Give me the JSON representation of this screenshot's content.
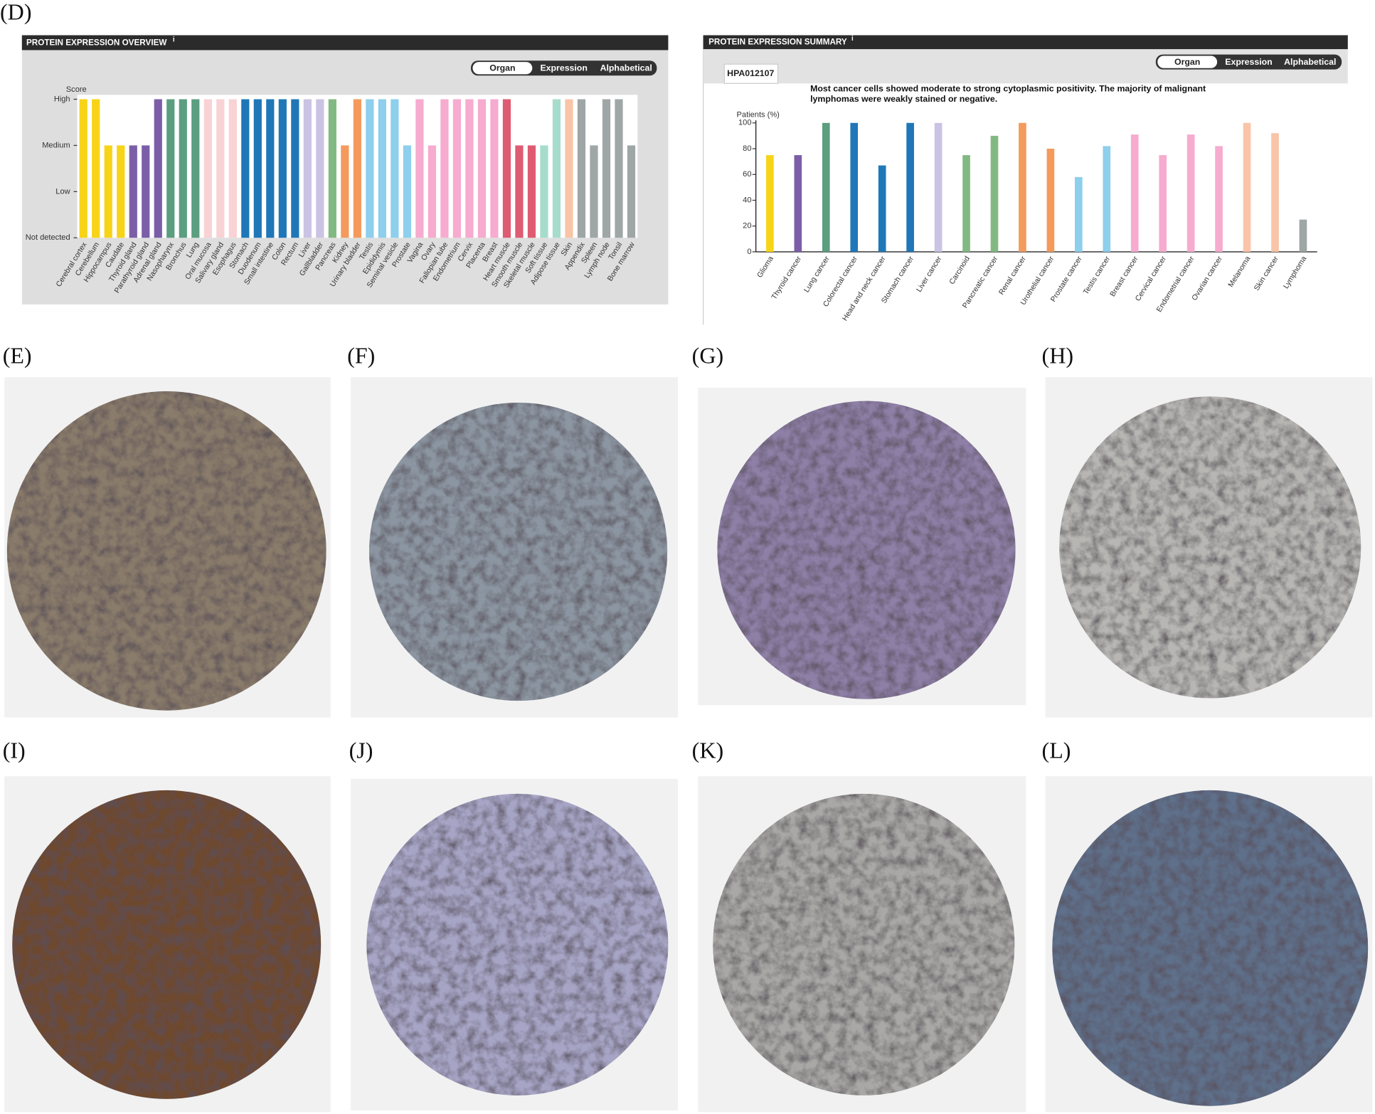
{
  "figure_label": "(D)",
  "chart_data": [
    {
      "type": "bar",
      "title": "PROTEIN EXPRESSION OVERVIEW",
      "info": "i",
      "buttons": [
        "Organ",
        "Expression",
        "Alphabetical"
      ],
      "ylabel": "Score",
      "categories": [
        "Cerebral cortex",
        "Cerebellum",
        "Hippocampus",
        "Caudate",
        "Thyroid gland",
        "Parathyroid gland",
        "Adrenal gland",
        "Nasopharynx",
        "Bronchus",
        "Lung",
        "Oral mucosa",
        "Salivary gland",
        "Esophagus",
        "Stomach",
        "Duodenum",
        "Small intestine",
        "Colon",
        "Rectum",
        "Liver",
        "Gallbladder",
        "Pancreas",
        "Kidney",
        "Urinary bladder",
        "Testis",
        "Epididymis",
        "Seminal vesicle",
        "Prostate",
        "Vagina",
        "Ovary",
        "Fallopian tube",
        "Endometrium",
        "Cervix",
        "Placenta",
        "Breast",
        "Heart muscle",
        "Smooth muscle",
        "Skeletal muscle",
        "Soft tissue",
        "Adipose tissue",
        "Skin",
        "Appendix",
        "Spleen",
        "Lymph node",
        "Tonsil",
        "Bone marrow"
      ],
      "values": [
        3,
        3,
        2,
        2,
        2,
        2,
        3,
        3,
        3,
        3,
        3,
        3,
        3,
        3,
        3,
        3,
        3,
        3,
        3,
        3,
        3,
        2,
        3,
        3,
        3,
        3,
        2,
        3,
        2,
        3,
        3,
        3,
        3,
        3,
        3,
        2,
        2,
        2,
        3,
        3,
        3,
        2,
        3,
        3,
        2
      ],
      "colors": [
        "#f7d417",
        "#f7d417",
        "#f7d417",
        "#f7d417",
        "#7b5ea7",
        "#7b5ea7",
        "#7b5ea7",
        "#5b9e80",
        "#5b9e80",
        "#5b9e80",
        "#f8d2d4",
        "#f8d2d4",
        "#f8d2d4",
        "#1f77b8",
        "#1f77b8",
        "#1f77b8",
        "#1f77b8",
        "#1f77b8",
        "#cbc3e3",
        "#cbc3e3",
        "#82b982",
        "#f49a5c",
        "#f49a5c",
        "#8dcfec",
        "#8dcfec",
        "#8dcfec",
        "#8dcfec",
        "#f6abcf",
        "#f6abcf",
        "#f6abcf",
        "#f6abcf",
        "#f6abcf",
        "#f6abcf",
        "#f6abcf",
        "#de5b71",
        "#de5b71",
        "#de5b71",
        "#a6dccb",
        "#a6dccb",
        "#f9c4a7",
        "#9ea6a6",
        "#9ea6a6",
        "#9ea6a6",
        "#9ea6a6",
        "#9ea6a6"
      ],
      "ylim": [
        0,
        3
      ],
      "yticks": [
        {
          "value": 0,
          "label": "Not detected"
        },
        {
          "value": 1,
          "label": "Low"
        },
        {
          "value": 2,
          "label": "Medium"
        },
        {
          "value": 3,
          "label": "High"
        }
      ]
    },
    {
      "type": "bar",
      "title": "PROTEIN EXPRESSION SUMMARY",
      "info": "i",
      "buttons": [
        "Organ",
        "Expression",
        "Alphabetical"
      ],
      "antibody": "HPA012107",
      "description": "Most cancer cells showed moderate to strong cytoplasmic positivity. The majority of malignant lymphomas were weakly stained or negative.",
      "ylabel": "Patients (%)",
      "categories": [
        "Glioma",
        "Thyroid cancer",
        "Lung cancer",
        "Colorectal cancer",
        "Head and neck cancer",
        "Stomach cancer",
        "Liver cancer",
        "Carcinoid",
        "Pancreatic cancer",
        "Renal cancer",
        "Urothelial cancer",
        "Prostate cancer",
        "Testis cancer",
        "Breast cancer",
        "Cervical cancer",
        "Endometrial cancer",
        "Ovarian cancer",
        "Melanoma",
        "Skin cancer",
        "Lymphoma"
      ],
      "values": [
        75,
        75,
        100,
        100,
        67,
        100,
        100,
        75,
        90,
        100,
        80,
        58,
        82,
        91,
        75,
        91,
        82,
        100,
        92,
        25
      ],
      "colors": [
        "#f7d417",
        "#7b5ea7",
        "#5b9e80",
        "#1f77b8",
        "#1f77b8",
        "#1f77b8",
        "#cbc3e3",
        "#82b982",
        "#82b982",
        "#f49a5c",
        "#f49a5c",
        "#8dcfec",
        "#8dcfec",
        "#f6abcf",
        "#f6abcf",
        "#f6abcf",
        "#f6abcf",
        "#f9c4a7",
        "#f9c4a7",
        "#9ea6a6"
      ],
      "ylim": [
        0,
        100
      ],
      "yticks": [
        0,
        20,
        40,
        60,
        80,
        100
      ]
    }
  ],
  "panels": [
    {
      "label": "(E)"
    },
    {
      "label": "(F)"
    },
    {
      "label": "(G)"
    },
    {
      "label": "(H)"
    },
    {
      "label": "(I)"
    },
    {
      "label": "(J)"
    },
    {
      "label": "(K)"
    },
    {
      "label": "(L)"
    }
  ]
}
